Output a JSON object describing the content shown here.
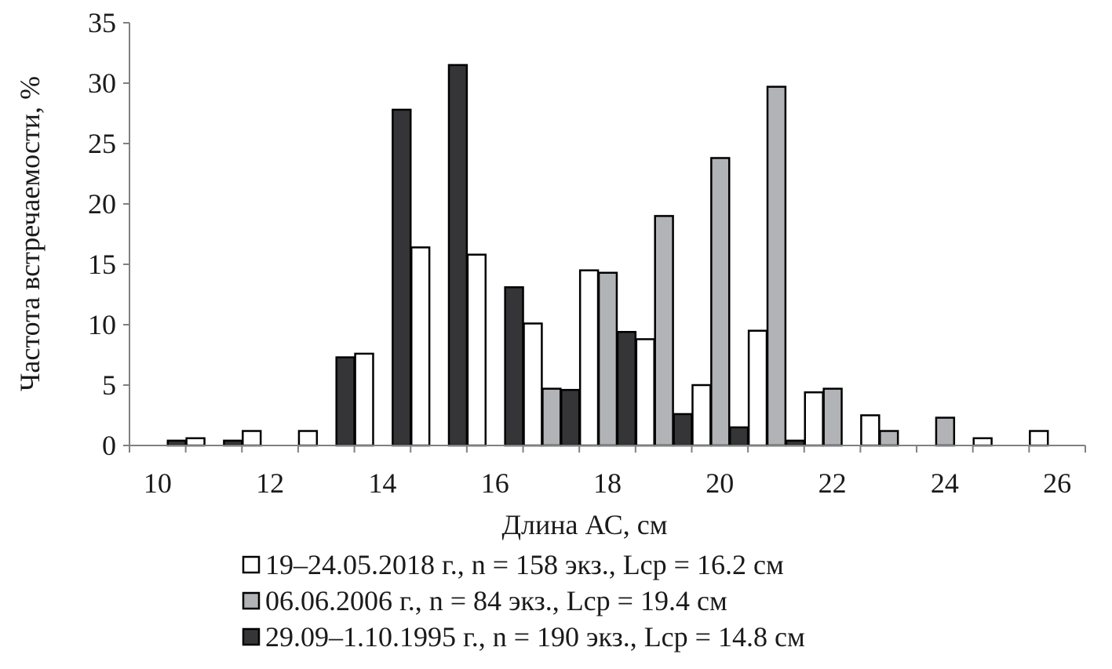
{
  "chart_data": {
    "type": "bar",
    "title": "",
    "xlabel": "Длина АС, см",
    "ylabel": "Частота встречаемости, %",
    "ylim": [
      0,
      35
    ],
    "yticks": [
      "0",
      "5",
      "10",
      "15",
      "20",
      "25",
      "30",
      "35"
    ],
    "categories": [
      10,
      11,
      12,
      13,
      14,
      15,
      16,
      17,
      18,
      19,
      20,
      21,
      22,
      23,
      24,
      25,
      26
    ],
    "xtick_labels": [
      "10",
      "12",
      "14",
      "16",
      "18",
      "20",
      "22",
      "24",
      "26"
    ],
    "grid": false,
    "legend_position": "bottom",
    "series": [
      {
        "name": "19–24.05.2018 г., n = 158 экз., Lср = 16.2 см",
        "color": "#ffffff",
        "values": [
          0,
          0.6,
          1.2,
          1.2,
          7.6,
          16.4,
          15.8,
          10.1,
          14.5,
          8.8,
          5.0,
          9.5,
          4.4,
          2.5,
          0,
          0.6,
          1.2
        ]
      },
      {
        "name": "06.06.2006 г., n = 84 экз., Lср = 19.4 см",
        "color": "#b2b3b6",
        "values": [
          0,
          0,
          0,
          0,
          0,
          0,
          0,
          4.7,
          14.3,
          19.0,
          23.8,
          29.7,
          4.7,
          1.2,
          2.3,
          0,
          0
        ]
      },
      {
        "name": "29.09–1.10.1995 г., n = 190 экз., Lср = 14.8 см",
        "color": "#353537",
        "values": [
          0.4,
          0.4,
          0,
          7.3,
          27.8,
          31.5,
          13.1,
          4.6,
          9.4,
          2.6,
          1.5,
          0.4,
          0,
          0,
          0,
          0,
          0
        ]
      }
    ]
  }
}
